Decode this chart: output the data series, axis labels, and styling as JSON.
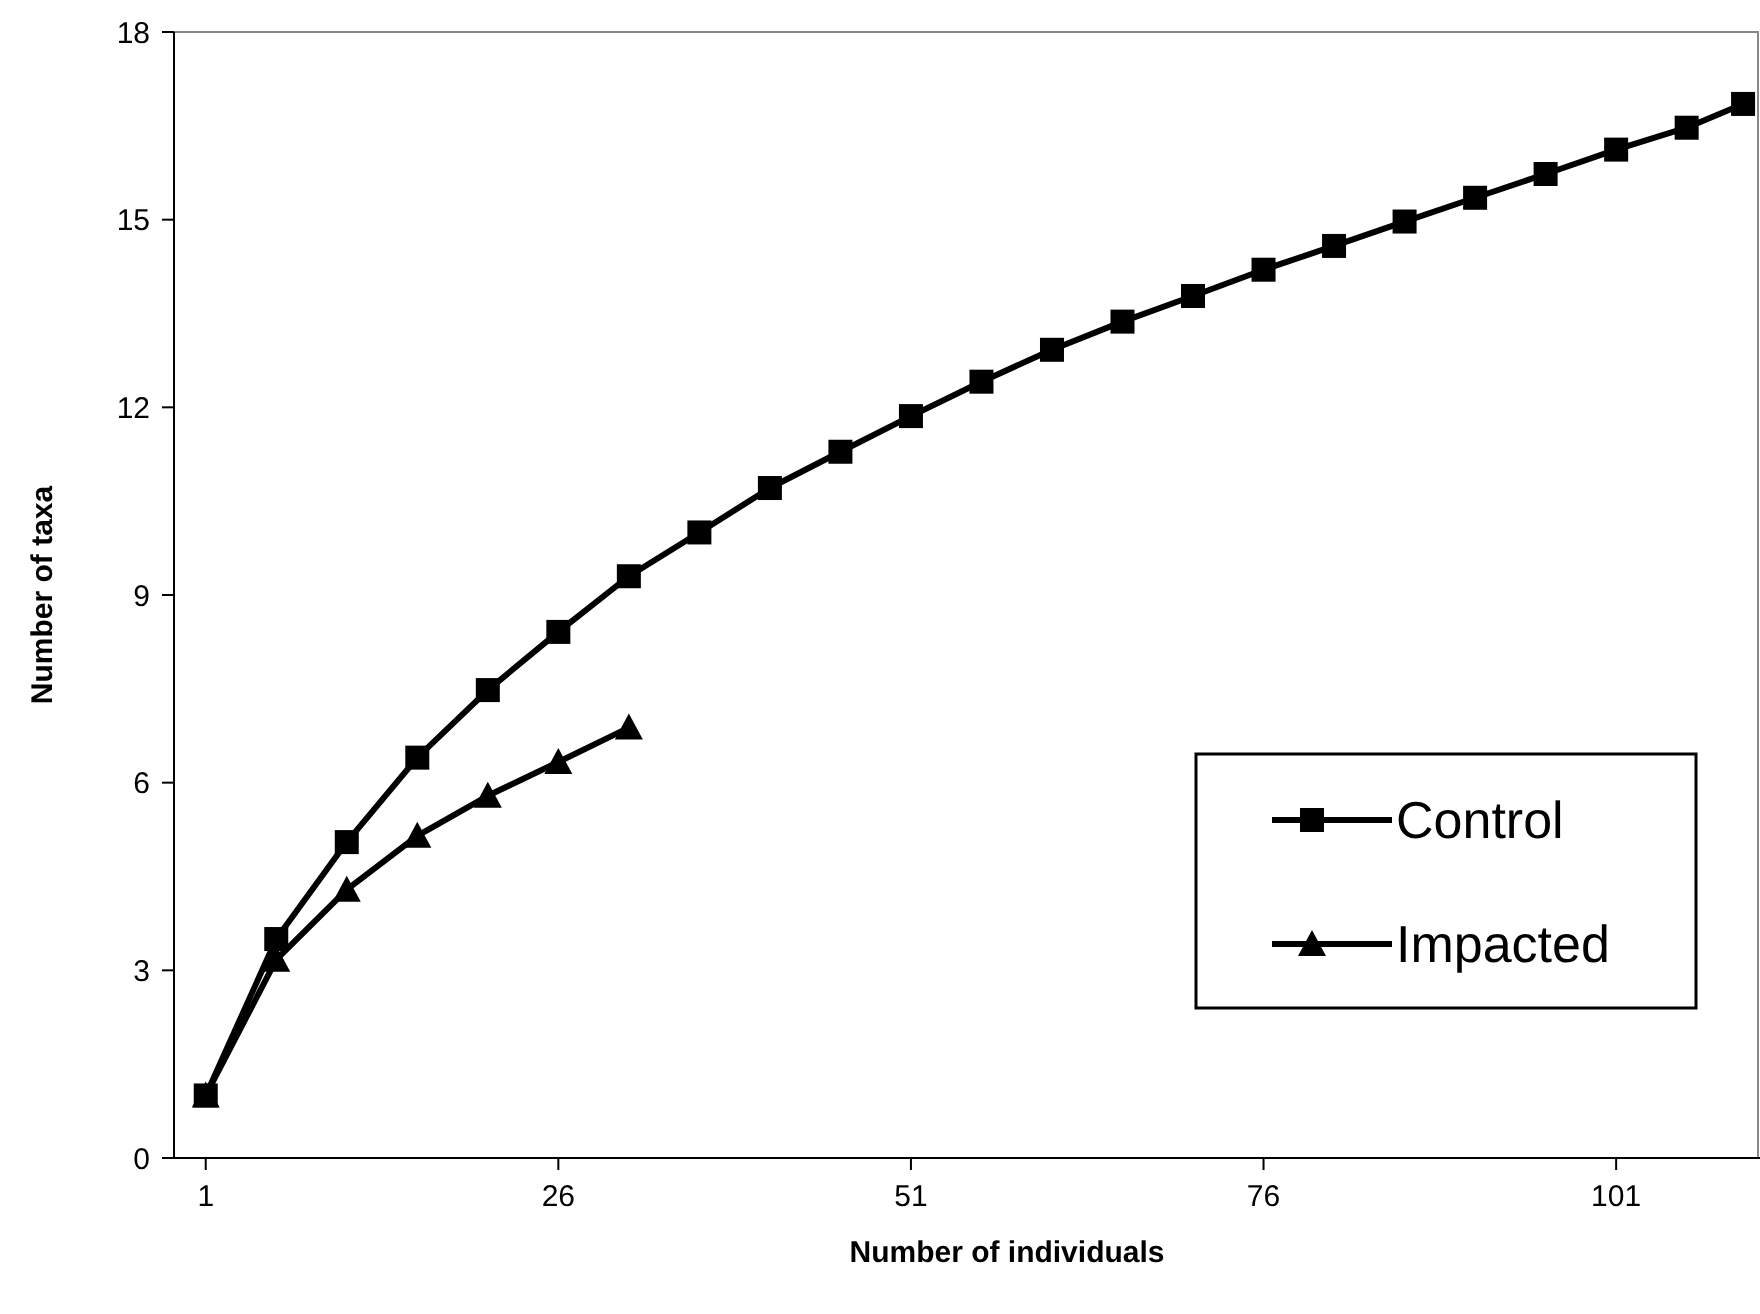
{
  "chart_data": {
    "type": "line",
    "xlabel": "Number of individuals",
    "ylabel": "Number of taxa",
    "xlim": [
      -1.25,
      111.2
    ],
    "xticks": [
      1,
      26,
      51,
      76,
      101
    ],
    "ylim": [
      0,
      18
    ],
    "yticks": [
      0,
      3,
      6,
      9,
      12,
      15,
      18
    ],
    "grid": false,
    "legend": "right",
    "line_style": "solid",
    "series": [
      {
        "name": "Control",
        "color": "#000000",
        "marker": "square",
        "x": [
          1,
          6,
          11,
          16,
          21,
          26,
          31,
          36,
          41,
          46,
          51,
          56,
          61,
          66,
          71,
          76,
          81,
          86,
          91,
          96,
          101,
          106,
          110
        ],
        "values": [
          1,
          3.5,
          5.05,
          6.4,
          7.48,
          8.41,
          9.3,
          10,
          10.71,
          11.29,
          11.86,
          12.41,
          12.92,
          13.37,
          13.78,
          14.2,
          14.58,
          14.97,
          15.35,
          15.73,
          16.12,
          16.47,
          16.85
        ]
      },
      {
        "name": "Impacted",
        "color": "#000000",
        "marker": "triangle",
        "x": [
          1,
          6,
          11,
          16,
          21,
          26,
          31
        ],
        "values": [
          1,
          3.17,
          4.29,
          5.15,
          5.79,
          6.33,
          6.88
        ]
      }
    ]
  }
}
